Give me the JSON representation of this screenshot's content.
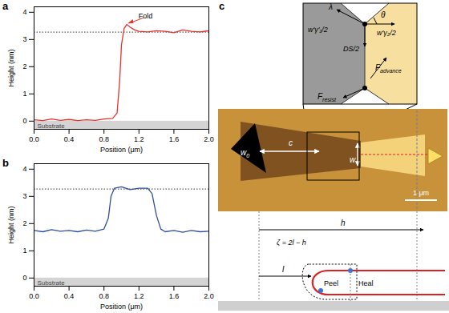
{
  "chart_data": [
    {
      "type": "line",
      "panel_label": "a",
      "x_label": "Position (μm)",
      "y_label": "Height (nm)",
      "color": "#e8322d",
      "x": [
        0,
        0.1,
        0.2,
        0.3,
        0.4,
        0.5,
        0.6,
        0.7,
        0.8,
        0.9,
        0.95,
        0.98,
        1.0,
        1.03,
        1.06,
        1.1,
        1.15,
        1.2,
        1.3,
        1.4,
        1.5,
        1.6,
        1.7,
        1.8,
        1.9,
        2.0
      ],
      "values": [
        0.05,
        0.02,
        0.08,
        0.03,
        0.06,
        0.02,
        0.05,
        0.03,
        0.08,
        0.1,
        0.3,
        1.5,
        2.8,
        3.4,
        3.55,
        3.45,
        3.35,
        3.3,
        3.28,
        3.32,
        3.3,
        3.25,
        3.35,
        3.3,
        3.28,
        3.32
      ],
      "reference_line": 3.27,
      "region_label": "Substrate",
      "annotations": [
        {
          "text": "Fold",
          "x": 1.06,
          "y": 3.55
        }
      ],
      "xlim": [
        0,
        2.0
      ],
      "xticks": [
        {
          "value": 0,
          "label": "0.0"
        },
        0.4,
        0.8,
        1.2,
        1.6,
        {
          "value": 2,
          "label": "2.0"
        }
      ],
      "ylim": [
        -0.3,
        4.2
      ],
      "yticks": [
        0,
        1,
        2,
        3,
        4
      ]
    },
    {
      "type": "line",
      "panel_label": "b",
      "x_label": "Position (μm)",
      "y_label": "Height (nm)",
      "color": "#2f4f9e",
      "x": [
        0,
        0.1,
        0.2,
        0.3,
        0.4,
        0.5,
        0.6,
        0.7,
        0.8,
        0.85,
        0.88,
        0.92,
        1.0,
        1.1,
        1.2,
        1.3,
        1.35,
        1.4,
        1.45,
        1.5,
        1.6,
        1.7,
        1.8,
        1.9,
        2.0
      ],
      "values": [
        1.75,
        1.7,
        1.78,
        1.72,
        1.75,
        1.7,
        1.76,
        1.72,
        1.8,
        2.2,
        3.0,
        3.3,
        3.35,
        3.25,
        3.3,
        3.3,
        3.1,
        2.3,
        1.8,
        1.7,
        1.75,
        1.68,
        1.75,
        1.7,
        1.72
      ],
      "reference_line": 3.27,
      "region_label": "Substrate",
      "xlim": [
        0,
        2.0
      ],
      "xticks": [
        {
          "value": 0,
          "label": "0.0"
        },
        0.4,
        0.8,
        1.2,
        1.6,
        {
          "value": 2,
          "label": "2.0"
        }
      ],
      "ylim": [
        -0.3,
        4.2
      ],
      "yticks": [
        0,
        1,
        2,
        3,
        4
      ]
    }
  ],
  "diagram": {
    "panel_label": "c",
    "inset": {
      "lambda": "λ",
      "theta": "θ",
      "left_tension": "w'γ'₁/2",
      "right_tension": "w'γ₂/2",
      "ds": "DS/2",
      "advance": {
        "main": "F",
        "sub": "advance"
      },
      "resist": {
        "main": "F",
        "sub": "resist"
      }
    },
    "micrograph": {
      "w0": {
        "main": "w",
        "sub": "0"
      },
      "c": "c",
      "w": "w",
      "scale_bar": "1 μm"
    },
    "schematic": {
      "h": "h",
      "zeta": "ζ = 2l − h",
      "l": "l",
      "peel": "Peel",
      "heal": "Heal"
    }
  }
}
